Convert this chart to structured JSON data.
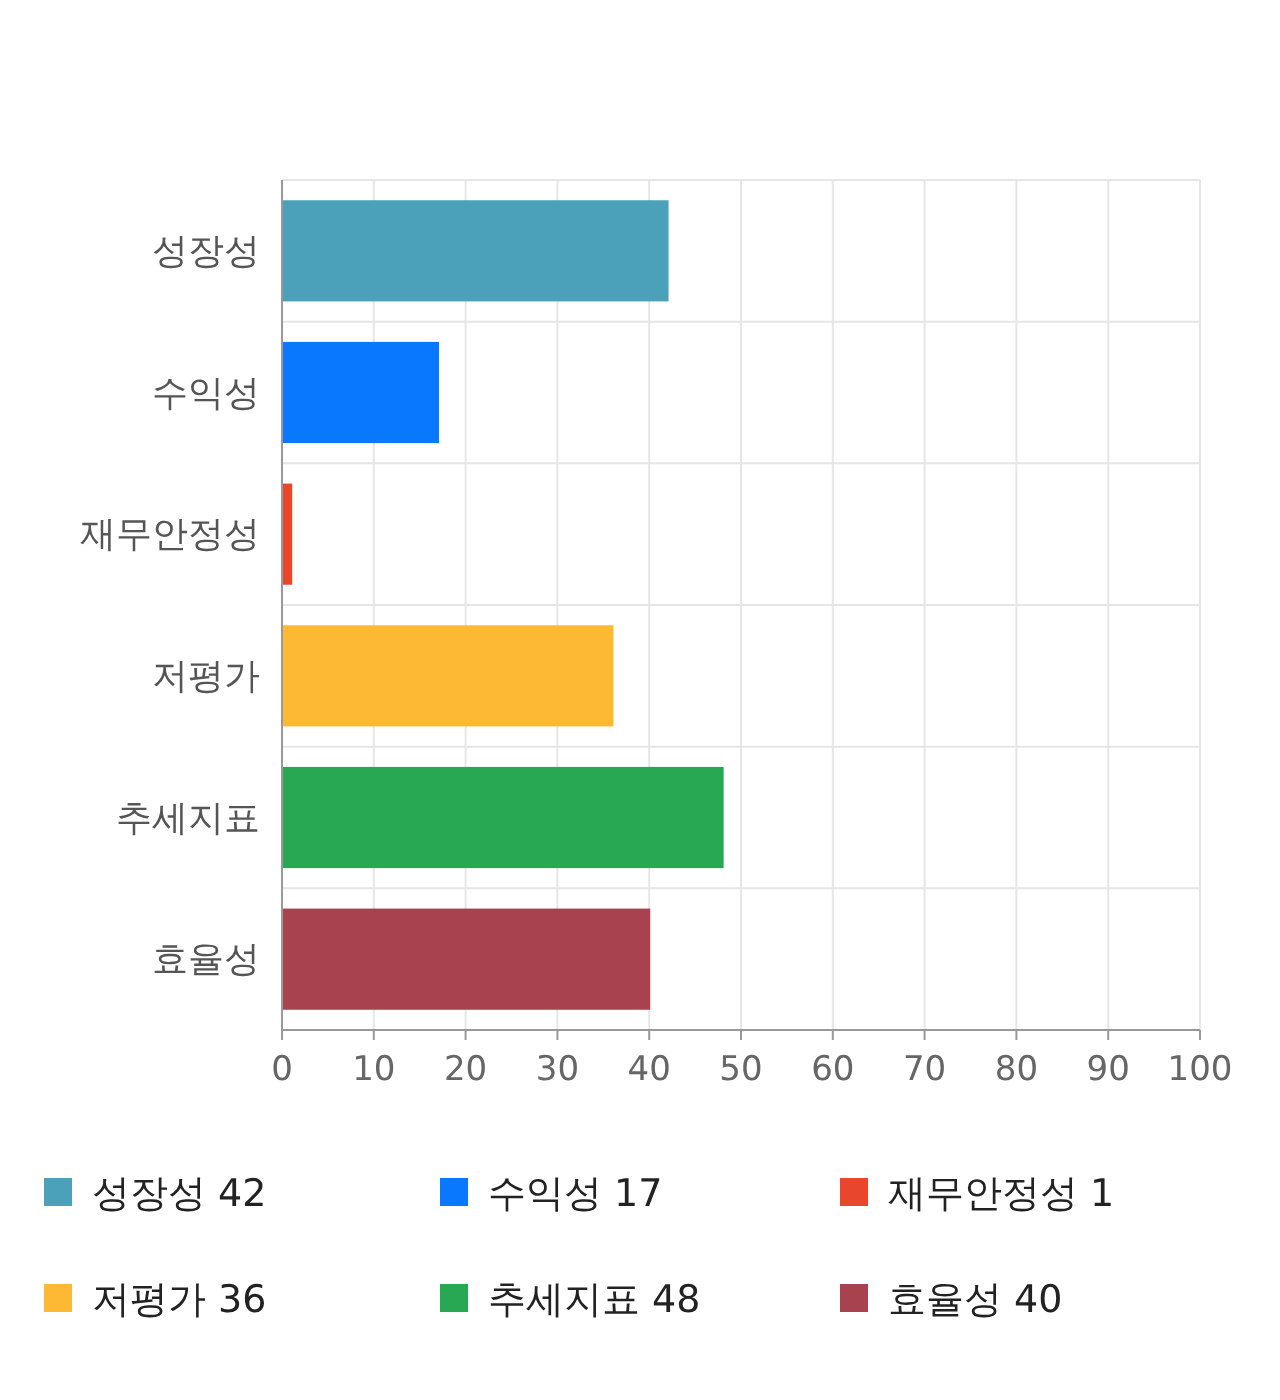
{
  "chart_data": {
    "type": "bar",
    "orientation": "horizontal",
    "categories": [
      "성장성",
      "수익성",
      "재무안정성",
      "저평가",
      "추세지표",
      "효율성"
    ],
    "series": [
      {
        "name": "성장성 42",
        "color": "#4ba1b9",
        "values": [
          42,
          null,
          null,
          null,
          null,
          null
        ]
      },
      {
        "name": "수익성 17",
        "color": "#0a78fc",
        "values": [
          null,
          17,
          null,
          null,
          null,
          null
        ]
      },
      {
        "name": "재무안정성 1",
        "color": "#e8472b",
        "values": [
          null,
          null,
          1,
          null,
          null,
          null
        ]
      },
      {
        "name": "저평가 36",
        "color": "#fdb933",
        "values": [
          null,
          null,
          null,
          36,
          null,
          null
        ]
      },
      {
        "name": "추세지표 48",
        "color": "#28a853",
        "values": [
          null,
          null,
          null,
          null,
          48,
          null
        ]
      },
      {
        "name": "효율성 40",
        "color": "#a8424f",
        "values": [
          null,
          null,
          null,
          null,
          null,
          40
        ]
      }
    ],
    "xlim": [
      0,
      100
    ],
    "xticks": [
      0,
      10,
      20,
      30,
      40,
      50,
      60,
      70,
      80,
      90,
      100
    ],
    "grid": true,
    "legend": "bottom"
  }
}
